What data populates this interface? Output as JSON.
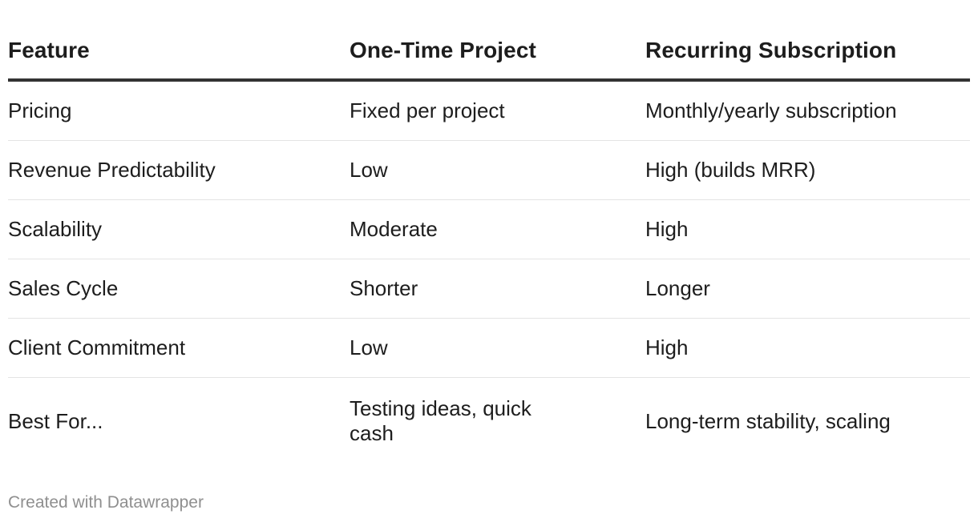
{
  "chart_data": {
    "type": "table",
    "columns": [
      "Feature",
      "One-Time Project",
      "Recurring Subscription"
    ],
    "rows": [
      [
        "Pricing",
        "Fixed per project",
        "Monthly/yearly subscription"
      ],
      [
        "Revenue Predictability",
        "Low",
        "High (builds MRR)"
      ],
      [
        "Scalability",
        "Moderate",
        "High"
      ],
      [
        "Sales Cycle",
        "Shorter",
        "Longer"
      ],
      [
        "Client Commitment",
        "Low",
        "High"
      ],
      [
        "Best For...",
        "Testing ideas, quick cash",
        "Long-term stability, scaling"
      ]
    ]
  },
  "footer": {
    "credit": "Created with Datawrapper"
  },
  "colors": {
    "text": "#1d1d1d",
    "header_rule": "#333333",
    "row_rule": "#e4e4e4",
    "footer_text": "#8f8f8f"
  }
}
